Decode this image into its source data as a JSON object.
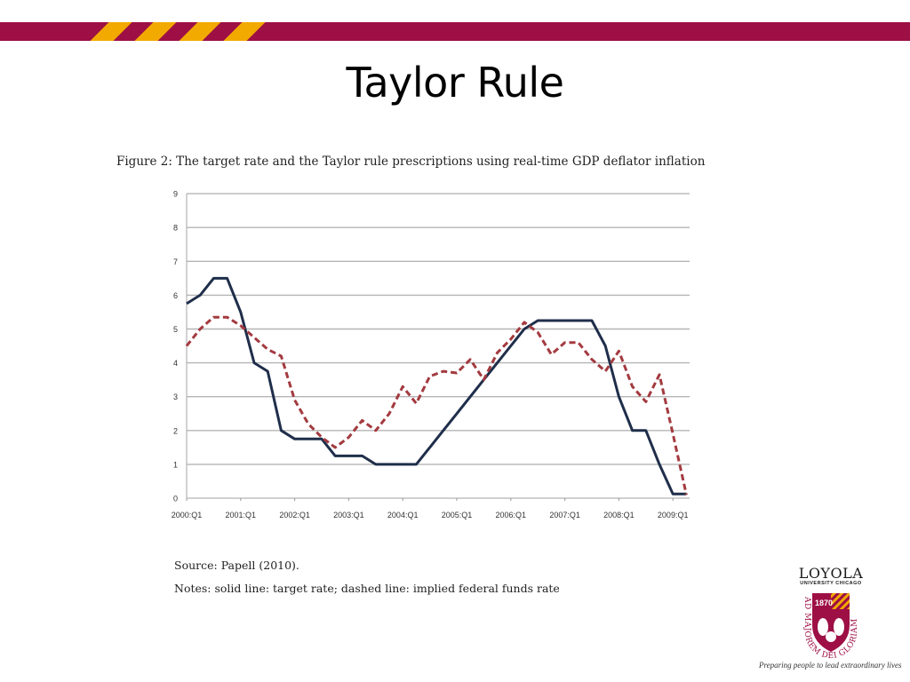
{
  "slide": {
    "title": "Taylor Rule",
    "colors": {
      "band": "#9d0f45",
      "stripe": "#f2a900"
    }
  },
  "figure": {
    "caption": "Figure 2: The target rate and the Taylor rule prescriptions using real-time GDP deflator inflation",
    "source": "Source: Papell (2010).",
    "notes": "Notes: solid line: target rate; dashed line: implied federal funds rate"
  },
  "logo": {
    "name": "LOYOLA",
    "subtitle": "UNIVERSITY CHICAGO",
    "year": "1870",
    "motto": "AD MAJOREM DEI GLORIAM",
    "tagline": "Preparing people to lead extraordinary lives"
  },
  "chart_data": {
    "type": "line",
    "title": "Figure 2: The target rate and the Taylor rule prescriptions using real-time GDP deflator inflation",
    "xlabel": "",
    "ylabel": "",
    "ylim": [
      0,
      9
    ],
    "yticks": [
      0,
      1,
      2,
      3,
      4,
      5,
      6,
      7,
      8,
      9
    ],
    "grid": true,
    "legend": "none (described in notes)",
    "x_tick_labels": [
      "2000:Q1",
      "2001:Q1",
      "2002:Q1",
      "2003:Q1",
      "2004:Q1",
      "2005:Q1",
      "2006:Q1",
      "2007:Q1",
      "2008:Q1",
      "2009:Q1"
    ],
    "x": [
      "2000:Q1",
      "2000:Q2",
      "2000:Q3",
      "2000:Q4",
      "2001:Q1",
      "2001:Q2",
      "2001:Q3",
      "2001:Q4",
      "2002:Q1",
      "2002:Q2",
      "2002:Q3",
      "2002:Q4",
      "2003:Q1",
      "2003:Q2",
      "2003:Q3",
      "2003:Q4",
      "2004:Q1",
      "2004:Q2",
      "2004:Q3",
      "2004:Q4",
      "2005:Q1",
      "2005:Q2",
      "2005:Q3",
      "2005:Q4",
      "2006:Q1",
      "2006:Q2",
      "2006:Q3",
      "2006:Q4",
      "2007:Q1",
      "2007:Q2",
      "2007:Q3",
      "2007:Q4",
      "2008:Q1",
      "2008:Q2",
      "2008:Q3",
      "2008:Q4",
      "2009:Q1",
      "2009:Q2"
    ],
    "series": [
      {
        "name": "Target rate (solid line)",
        "style": "solid",
        "color": "#1f2e4a",
        "values": [
          5.75,
          6.0,
          6.5,
          6.5,
          5.5,
          4.0,
          3.75,
          2.0,
          1.75,
          1.75,
          1.75,
          1.25,
          1.25,
          1.25,
          1.0,
          1.0,
          1.0,
          1.0,
          1.5,
          2.0,
          2.5,
          3.0,
          3.5,
          4.0,
          4.5,
          5.0,
          5.25,
          5.25,
          5.25,
          5.25,
          5.25,
          4.5,
          3.0,
          2.0,
          2.0,
          1.0,
          0.125,
          0.125
        ]
      },
      {
        "name": "Implied federal funds rate (dashed line)",
        "style": "dashed",
        "color": "#a33a3f",
        "values": [
          4.5,
          5.0,
          5.35,
          5.35,
          5.1,
          4.75,
          4.4,
          4.2,
          2.9,
          2.2,
          1.8,
          1.5,
          1.8,
          2.3,
          2.0,
          2.5,
          3.3,
          2.8,
          3.6,
          3.75,
          3.7,
          4.1,
          3.5,
          4.3,
          4.7,
          5.2,
          4.9,
          4.25,
          4.6,
          4.6,
          4.1,
          3.75,
          4.35,
          3.3,
          2.85,
          3.65,
          1.9,
          0.1
        ]
      }
    ]
  }
}
